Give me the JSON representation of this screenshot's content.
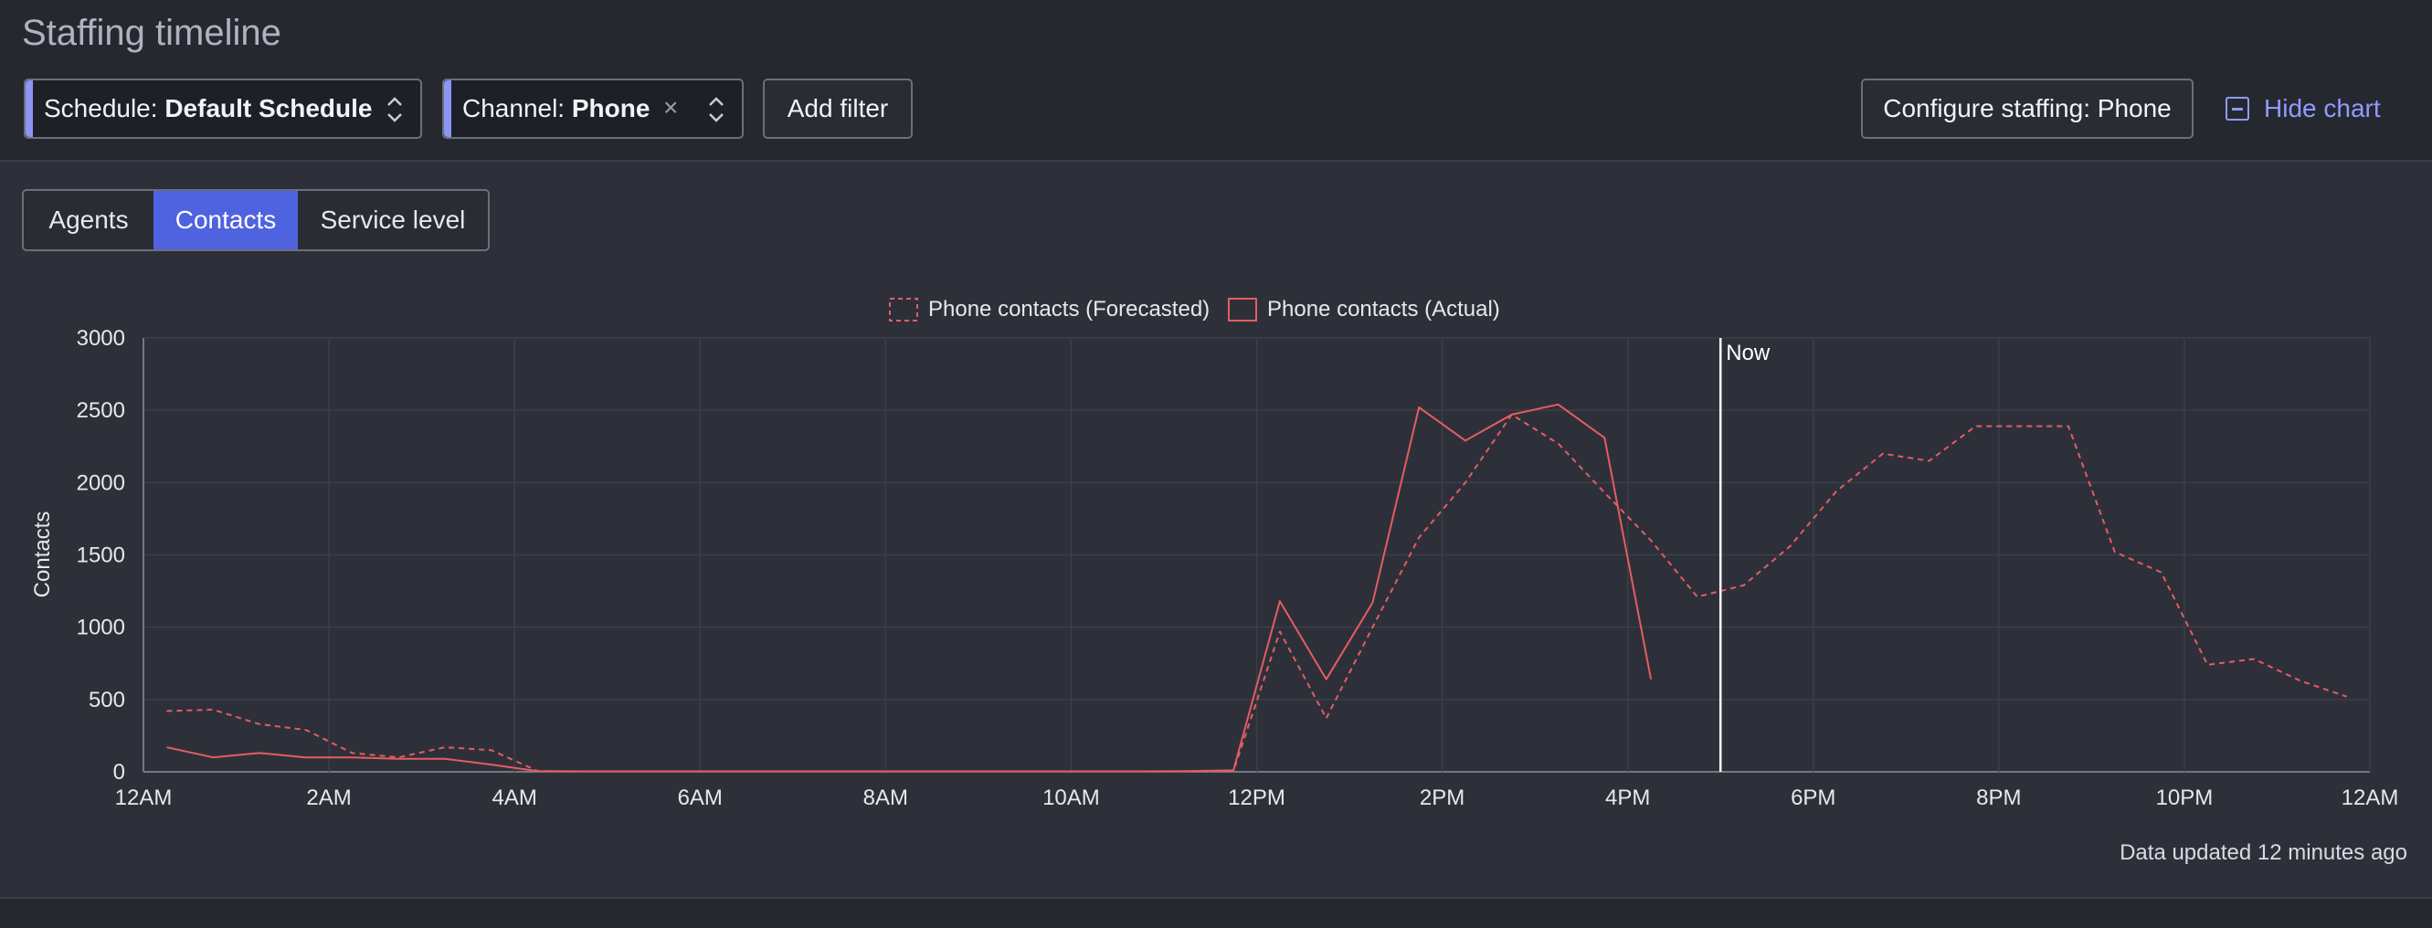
{
  "page": {
    "title": "Staffing timeline"
  },
  "filters": {
    "schedule": {
      "label": "Schedule: ",
      "value": "Default Schedule"
    },
    "channel": {
      "label": "Channel: ",
      "value": "Phone",
      "clear": "×"
    },
    "add_filter": "Add filter"
  },
  "actions": {
    "configure": "Configure staffing: Phone",
    "hide_chart": "Hide chart"
  },
  "tabs": [
    {
      "label": "Agents",
      "active": false
    },
    {
      "label": "Contacts",
      "active": true
    },
    {
      "label": "Service level",
      "active": false
    }
  ],
  "footer": {
    "updated": "Data updated 12 minutes ago"
  },
  "colors": {
    "accent": "#4f62e0",
    "series": "#e35d62",
    "now_line": "#ffffff"
  },
  "chart_data": {
    "type": "line",
    "ylabel": "Contacts",
    "ylim": [
      0,
      3000
    ],
    "yticks": [
      0,
      500,
      1000,
      1500,
      2000,
      2500,
      3000
    ],
    "xlim_hours": [
      0,
      24
    ],
    "xticks": [
      {
        "hour": 0,
        "label": "12AM"
      },
      {
        "hour": 2,
        "label": "2AM"
      },
      {
        "hour": 4,
        "label": "4AM"
      },
      {
        "hour": 6,
        "label": "6AM"
      },
      {
        "hour": 8,
        "label": "8AM"
      },
      {
        "hour": 10,
        "label": "10AM"
      },
      {
        "hour": 12,
        "label": "12PM"
      },
      {
        "hour": 14,
        "label": "2PM"
      },
      {
        "hour": 16,
        "label": "4PM"
      },
      {
        "hour": 18,
        "label": "6PM"
      },
      {
        "hour": 20,
        "label": "8PM"
      },
      {
        "hour": 22,
        "label": "10PM"
      },
      {
        "hour": 24,
        "label": "12AM"
      }
    ],
    "now": {
      "hour": 17,
      "label": "Now"
    },
    "legend_position": "top-center",
    "series": [
      {
        "name": "Phone contacts (Forecasted)",
        "style": "dashed",
        "points": [
          [
            0.25,
            420
          ],
          [
            0.75,
            430
          ],
          [
            1.25,
            330
          ],
          [
            1.75,
            290
          ],
          [
            2.25,
            130
          ],
          [
            2.75,
            100
          ],
          [
            3.25,
            170
          ],
          [
            3.75,
            150
          ],
          [
            4.25,
            5
          ],
          [
            4.75,
            3
          ],
          [
            5.25,
            3
          ],
          [
            5.75,
            3
          ],
          [
            6.25,
            3
          ],
          [
            6.75,
            3
          ],
          [
            7.25,
            3
          ],
          [
            7.75,
            3
          ],
          [
            8.25,
            3
          ],
          [
            8.75,
            3
          ],
          [
            9.25,
            3
          ],
          [
            9.75,
            3
          ],
          [
            10.25,
            3
          ],
          [
            10.75,
            3
          ],
          [
            11.25,
            3
          ],
          [
            11.75,
            5
          ],
          [
            12.25,
            970
          ],
          [
            12.75,
            370
          ],
          [
            13.25,
            1000
          ],
          [
            13.75,
            1620
          ],
          [
            14.25,
            2000
          ],
          [
            14.75,
            2470
          ],
          [
            15.25,
            2270
          ],
          [
            15.75,
            1930
          ],
          [
            16.25,
            1600
          ],
          [
            16.75,
            1210
          ],
          [
            17.25,
            1290
          ],
          [
            17.75,
            1560
          ],
          [
            18.25,
            1940
          ],
          [
            18.75,
            2200
          ],
          [
            19.25,
            2150
          ],
          [
            19.75,
            2390
          ],
          [
            20.25,
            2390
          ],
          [
            20.75,
            2390
          ],
          [
            21.25,
            1520
          ],
          [
            21.75,
            1380
          ],
          [
            22.25,
            740
          ],
          [
            22.75,
            780
          ],
          [
            23.25,
            630
          ],
          [
            23.75,
            520
          ]
        ]
      },
      {
        "name": "Phone contacts (Actual)",
        "style": "solid",
        "points": [
          [
            0.25,
            170
          ],
          [
            0.75,
            100
          ],
          [
            1.25,
            130
          ],
          [
            1.75,
            100
          ],
          [
            2.25,
            100
          ],
          [
            2.75,
            90
          ],
          [
            3.25,
            90
          ],
          [
            3.75,
            50
          ],
          [
            4.25,
            5
          ],
          [
            4.75,
            3
          ],
          [
            5.25,
            3
          ],
          [
            5.75,
            3
          ],
          [
            6.25,
            3
          ],
          [
            6.75,
            3
          ],
          [
            7.25,
            3
          ],
          [
            7.75,
            3
          ],
          [
            8.25,
            3
          ],
          [
            8.75,
            3
          ],
          [
            9.25,
            3
          ],
          [
            9.75,
            3
          ],
          [
            10.25,
            3
          ],
          [
            10.75,
            3
          ],
          [
            11.25,
            5
          ],
          [
            11.75,
            10
          ],
          [
            12.25,
            1180
          ],
          [
            12.75,
            640
          ],
          [
            13.25,
            1170
          ],
          [
            13.75,
            2520
          ],
          [
            14.25,
            2290
          ],
          [
            14.75,
            2470
          ],
          [
            15.25,
            2540
          ],
          [
            15.75,
            2310
          ],
          [
            16.25,
            640
          ]
        ]
      }
    ]
  }
}
